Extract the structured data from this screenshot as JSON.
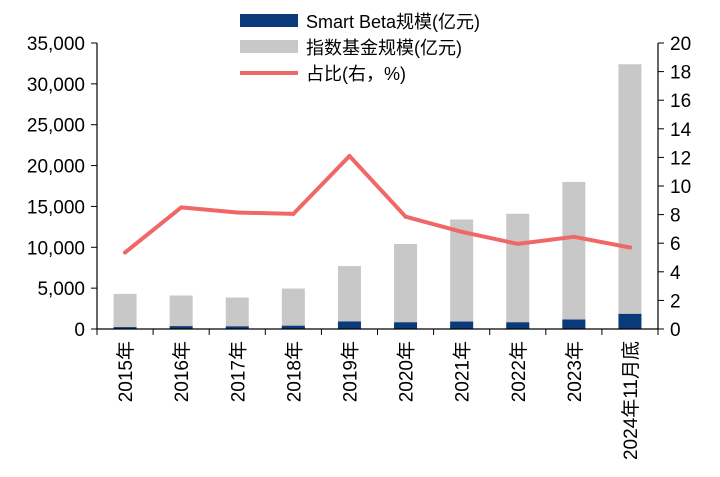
{
  "chart_data": {
    "type": "bar",
    "title": "",
    "xlabel": "",
    "ylabel": "",
    "y2label": "",
    "categories": [
      "2015年",
      "2016年",
      "2017年",
      "2018年",
      "2019年",
      "2020年",
      "2021年",
      "2022年",
      "2023年",
      "2024年11月底"
    ],
    "ylim": [
      0,
      35000
    ],
    "y2lim": [
      0,
      20
    ],
    "yticks": [
      "0",
      "5,000",
      "10,000",
      "15,000",
      "20,000",
      "25,000",
      "30,000",
      "35,000"
    ],
    "y2ticks": [
      "0",
      "2",
      "4",
      "6",
      "8",
      "10",
      "12",
      "14",
      "16",
      "18",
      "20"
    ],
    "series": [
      {
        "name": "Smart Beta规模(亿元)",
        "type": "bar",
        "axis": "left",
        "color": "#0b3a7a",
        "values": [
          230,
          350,
          320,
          400,
          920,
          820,
          910,
          820,
          1160,
          1850
        ]
      },
      {
        "name": "指数基金规模(亿元)",
        "type": "bar",
        "axis": "left",
        "color": "#c8c8c8",
        "values": [
          4300,
          4100,
          3850,
          4950,
          7700,
          10400,
          13400,
          14100,
          18000,
          32400
        ]
      },
      {
        "name": "占比(右，%)",
        "type": "line",
        "axis": "right",
        "color": "#f06767",
        "values": [
          5.35,
          8.5,
          8.15,
          8.05,
          12.1,
          7.85,
          6.8,
          5.95,
          6.45,
          5.7
        ]
      }
    ],
    "legend_position": "top-center",
    "grid": false
  }
}
